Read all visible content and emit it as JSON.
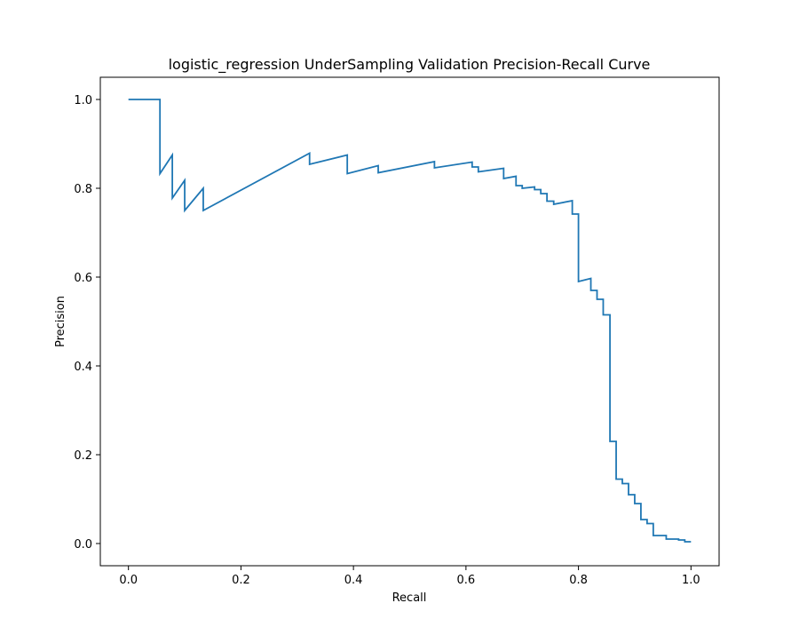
{
  "chart_data": {
    "type": "line",
    "title": "logistic_regression UnderSampling Validation Precision-Recall Curve",
    "xlabel": "Recall",
    "ylabel": "Precision",
    "xlim": [
      -0.05,
      1.05
    ],
    "ylim": [
      -0.05,
      1.05
    ],
    "xticks": [
      0.0,
      0.2,
      0.4,
      0.6,
      0.8,
      1.0
    ],
    "xtick_labels": [
      "0.0",
      "0.2",
      "0.4",
      "0.6",
      "0.8",
      "1.0"
    ],
    "yticks": [
      0.0,
      0.2,
      0.4,
      0.6,
      0.8,
      1.0
    ],
    "ytick_labels": [
      "0.0",
      "0.2",
      "0.4",
      "0.6",
      "0.8",
      "1.0"
    ],
    "grid": false,
    "series": [
      {
        "color": "#1f77b4",
        "x": [
          0.0,
          0.056,
          0.056,
          0.078,
          0.078,
          0.1,
          0.1,
          0.133,
          0.133,
          0.322,
          0.322,
          0.389,
          0.389,
          0.444,
          0.444,
          0.544,
          0.544,
          0.611,
          0.611,
          0.622,
          0.622,
          0.667,
          0.667,
          0.689,
          0.689,
          0.7,
          0.7,
          0.722,
          0.722,
          0.733,
          0.733,
          0.744,
          0.744,
          0.756,
          0.756,
          0.789,
          0.789,
          0.8,
          0.8,
          0.822,
          0.822,
          0.833,
          0.833,
          0.844,
          0.844,
          0.856,
          0.856,
          0.867,
          0.867,
          0.878,
          0.878,
          0.889,
          0.889,
          0.9,
          0.9,
          0.911,
          0.911,
          0.922,
          0.922,
          0.933,
          0.933,
          0.956,
          0.956,
          0.978,
          0.978,
          0.989,
          0.989,
          1.0
        ],
        "y": [
          1.0,
          1.0,
          0.833,
          0.875,
          0.778,
          0.818,
          0.75,
          0.8,
          0.75,
          0.879,
          0.854,
          0.875,
          0.833,
          0.851,
          0.835,
          0.86,
          0.846,
          0.859,
          0.848,
          0.848,
          0.837,
          0.845,
          0.822,
          0.827,
          0.806,
          0.806,
          0.8,
          0.803,
          0.797,
          0.797,
          0.788,
          0.788,
          0.771,
          0.771,
          0.764,
          0.772,
          0.742,
          0.742,
          0.59,
          0.597,
          0.57,
          0.57,
          0.55,
          0.55,
          0.515,
          0.515,
          0.23,
          0.23,
          0.145,
          0.145,
          0.135,
          0.135,
          0.11,
          0.11,
          0.09,
          0.09,
          0.054,
          0.054,
          0.045,
          0.045,
          0.018,
          0.018,
          0.01,
          0.01,
          0.008,
          0.008,
          0.004,
          0.004
        ]
      }
    ]
  }
}
